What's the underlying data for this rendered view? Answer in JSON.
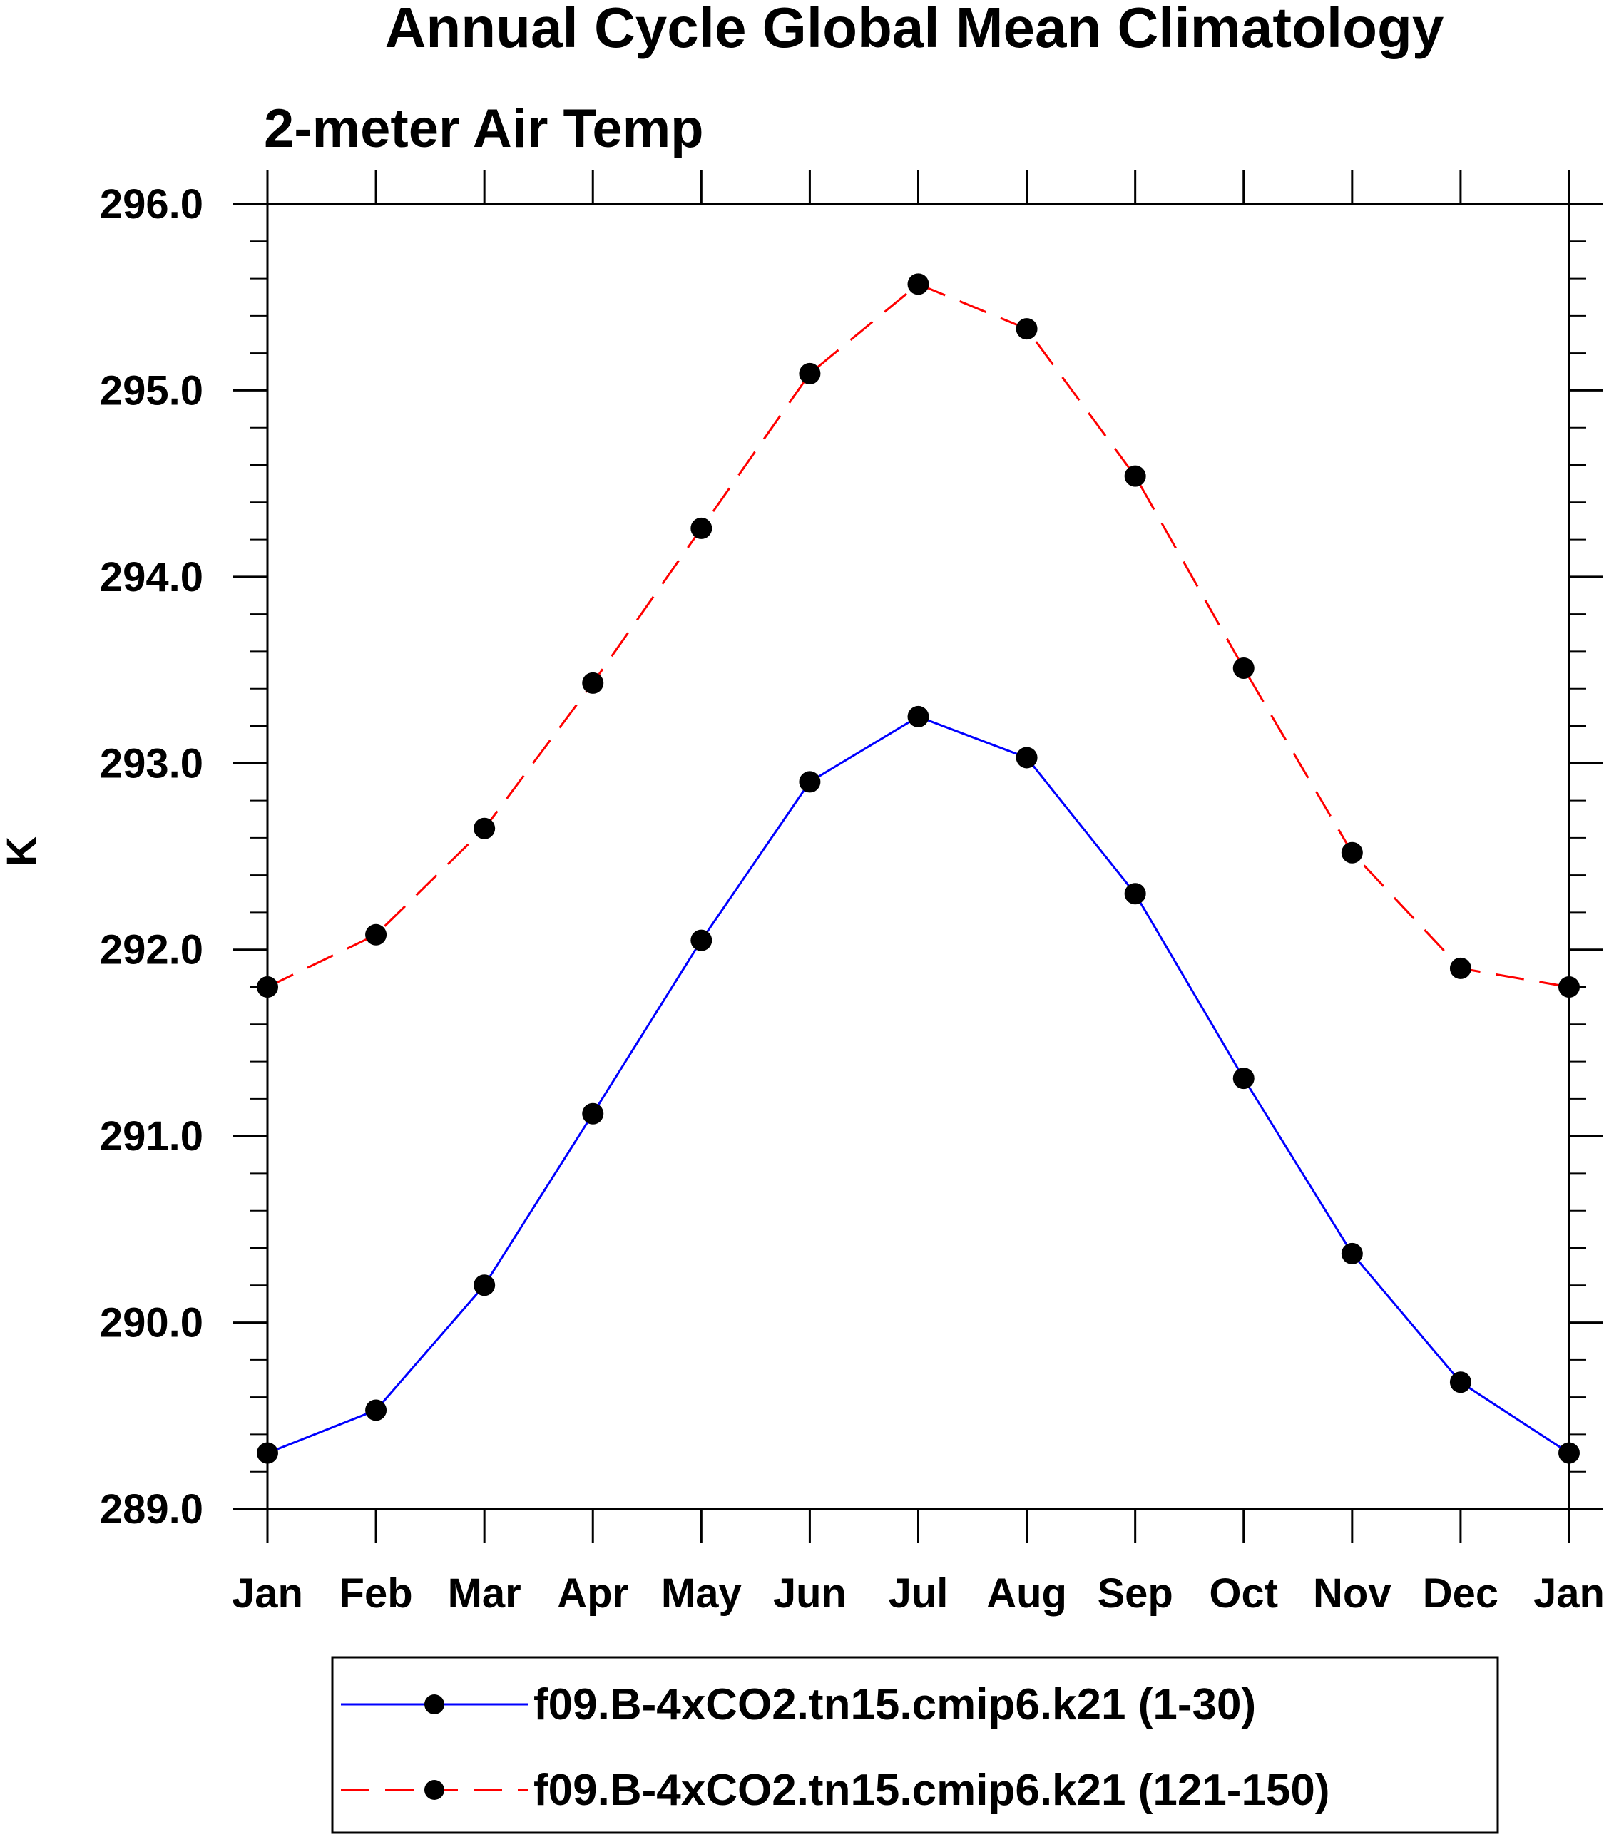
{
  "chart_data": {
    "type": "line",
    "title": "Annual Cycle Global Mean Climatology",
    "subtitle": "2-meter Air Temp",
    "xlabel": "",
    "ylabel": "K",
    "categories": [
      "Jan",
      "Feb",
      "Mar",
      "Apr",
      "May",
      "Jun",
      "Jul",
      "Aug",
      "Sep",
      "Oct",
      "Nov",
      "Dec",
      "Jan"
    ],
    "ylim": [
      289.0,
      296.0
    ],
    "y_ticks": [
      "289.0",
      "290.0",
      "291.0",
      "292.0",
      "293.0",
      "294.0",
      "295.0",
      "296.0"
    ],
    "y_minor_step": 0.2,
    "grid": false,
    "legend_position": "bottom",
    "series": [
      {
        "name": "f09.B-4xCO2.tn15.cmip6.k21 (1-30)",
        "color": "#0000ff",
        "line_style": "solid",
        "marker": "filled-circle",
        "values": [
          289.3,
          289.53,
          290.2,
          291.12,
          292.05,
          292.9,
          293.25,
          293.03,
          292.3,
          291.31,
          290.37,
          289.68,
          289.3
        ]
      },
      {
        "name": "f09.B-4xCO2.tn15.cmip6.k21 (121-150)",
        "color": "#ff0000",
        "line_style": "dashed",
        "marker": "filled-circle",
        "values": [
          291.8,
          292.08,
          292.65,
          293.43,
          294.26,
          295.09,
          295.57,
          295.33,
          294.54,
          293.51,
          292.52,
          291.9,
          291.8
        ]
      }
    ]
  }
}
